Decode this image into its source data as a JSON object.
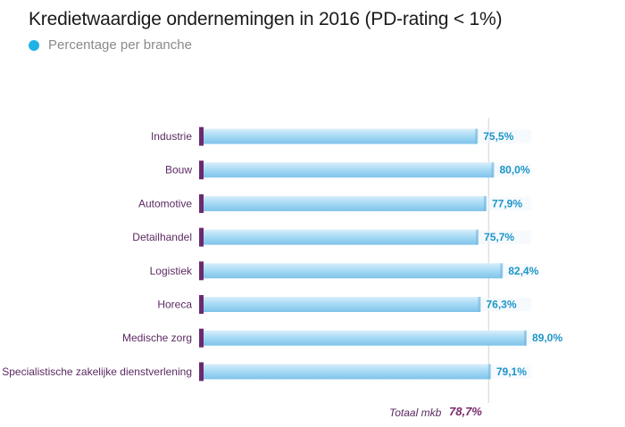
{
  "title": "Kredietwaardige ondernemingen in 2016 (PD-rating < 1%)",
  "legend": {
    "label": "Percentage per branche",
    "color": "#1fb2e6"
  },
  "chart_data": {
    "type": "bar",
    "orientation": "horizontal",
    "categories": [
      "Industrie",
      "Bouw",
      "Automotive",
      "Detailhandel",
      "Logistiek",
      "Horeca",
      "Medische zorg",
      "Specialistische zakelijke dienstverlening"
    ],
    "values": [
      75.5,
      80.0,
      77.9,
      75.7,
      82.4,
      76.3,
      89.0,
      79.1
    ],
    "value_labels": [
      "75,5%",
      "80,0%",
      "77,9%",
      "75,7%",
      "82,4%",
      "76,3%",
      "89,0%",
      "79,1%"
    ],
    "series_name": "Percentage per branche",
    "reference_line": {
      "label": "Totaal mkb",
      "value": 78.7,
      "value_label": "78,7%"
    },
    "bar_color": "#9fd6f2",
    "accent_color": "#6b2a6e",
    "xlim": [
      0,
      100
    ],
    "grid": false,
    "legend_position": "top-left"
  },
  "total": {
    "label": "Totaal mkb",
    "value_label": "78,7%"
  }
}
